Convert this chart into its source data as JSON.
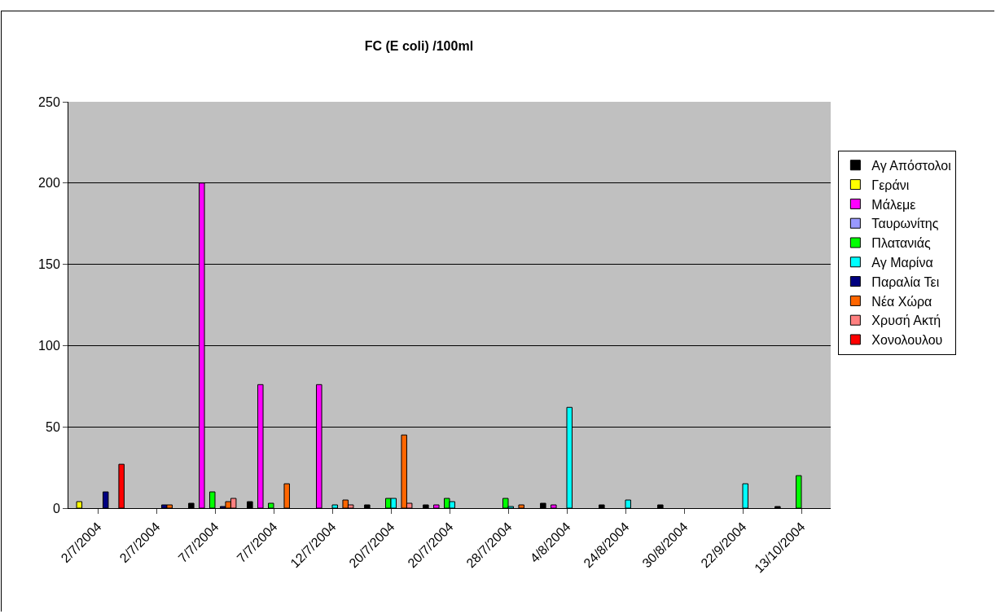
{
  "chart_data": {
    "type": "bar",
    "title": "FC (E coli) /100ml",
    "categories": [
      "2/7/2004",
      "2/7/2004",
      "7/7/2004",
      "7/7/2004",
      "12/7/2004",
      "20/7/2004",
      "20/7/2004",
      "28/7/2004",
      "4/8/2004",
      "24/8/2004",
      "30/8/2004",
      "22/9/2004",
      "13/10/2004"
    ],
    "series": [
      {
        "name": "Αγ Απόστολοι",
        "color": "#000000",
        "values": [
          null,
          null,
          3,
          4,
          null,
          2,
          2,
          null,
          3,
          2,
          2,
          null,
          1
        ]
      },
      {
        "name": "Γεράνι",
        "color": "#ffff00",
        "values": [
          4,
          null,
          null,
          null,
          null,
          null,
          null,
          null,
          null,
          null,
          null,
          null,
          null
        ]
      },
      {
        "name": "Μάλεμε",
        "color": "#ff00ff",
        "values": [
          null,
          null,
          200,
          76,
          76,
          null,
          2,
          null,
          2,
          null,
          null,
          null,
          null
        ]
      },
      {
        "name": "Ταυρωνίτης",
        "color": "#9999ff",
        "values": [
          null,
          null,
          null,
          null,
          null,
          null,
          null,
          null,
          null,
          null,
          null,
          null,
          null
        ]
      },
      {
        "name": "Πλατανιάς",
        "color": "#00ff00",
        "values": [
          null,
          null,
          10,
          3,
          null,
          6,
          6,
          6,
          null,
          null,
          null,
          null,
          20
        ]
      },
      {
        "name": "Αγ Μαρίνα",
        "color": "#00ffff",
        "values": [
          null,
          null,
          null,
          null,
          2,
          6,
          4,
          1,
          62,
          5,
          null,
          15,
          null
        ]
      },
      {
        "name": "Παραλία Τει",
        "color": "#000080",
        "values": [
          10,
          2,
          1,
          null,
          null,
          null,
          null,
          null,
          null,
          null,
          null,
          null,
          null
        ]
      },
      {
        "name": "Νέα Χώρα",
        "color": "#ff6600",
        "values": [
          null,
          2,
          4,
          15,
          5,
          45,
          null,
          2,
          null,
          null,
          null,
          null,
          null
        ]
      },
      {
        "name": "Χρυσή Ακτή",
        "color": "#ff8080",
        "values": [
          null,
          null,
          6,
          null,
          2,
          3,
          null,
          null,
          null,
          null,
          null,
          null,
          null
        ]
      },
      {
        "name": "Χονολουλου",
        "color": "#ff0000",
        "values": [
          27,
          null,
          null,
          null,
          null,
          null,
          null,
          null,
          null,
          null,
          null,
          null,
          null
        ]
      }
    ],
    "ylim": [
      0,
      250
    ],
    "yticks": [
      0,
      50,
      100,
      150,
      200,
      250
    ],
    "grid": "y",
    "legend": "right"
  }
}
